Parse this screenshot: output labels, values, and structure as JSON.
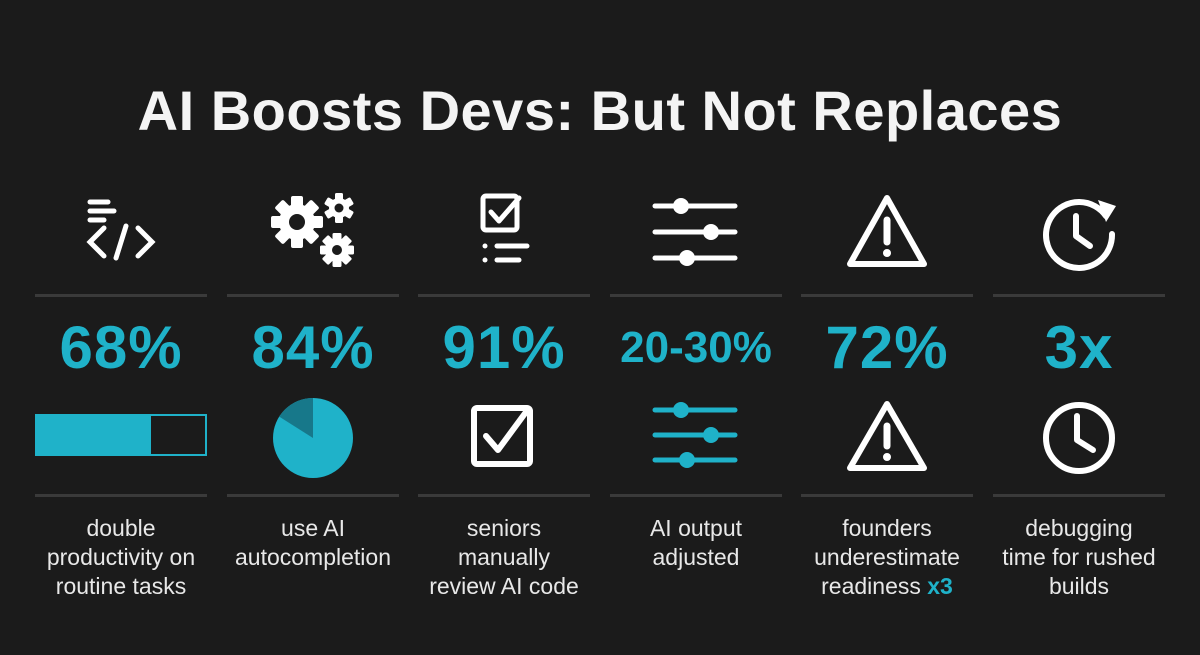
{
  "title": "AI Boosts Devs: But Not Replaces",
  "colors": {
    "accent": "#1fb2c9",
    "background": "#1b1b1b",
    "text": "#ffffff",
    "rule": "#3a3a3a"
  },
  "columns": [
    {
      "top_icon": "code-icon",
      "stat": "68%",
      "visual": "progress-bar",
      "visual_fill_fraction": 0.68,
      "desc_lines": [
        "double",
        "productivity on",
        "routine tasks"
      ]
    },
    {
      "top_icon": "gears-icon",
      "stat": "84%",
      "visual": "pie-chart",
      "visual_fill_fraction": 0.84,
      "desc_lines": [
        "use AI",
        "autocompletion"
      ]
    },
    {
      "top_icon": "checklist-icon",
      "stat": "91%",
      "visual": "checkbox-icon",
      "desc_lines": [
        "seniors",
        "manually",
        "review AI code"
      ]
    },
    {
      "top_icon": "sliders-icon",
      "stat": "20-30%",
      "visual": "sliders-icon",
      "desc_lines": [
        "AI output",
        "adjusted"
      ]
    },
    {
      "top_icon": "warning-icon",
      "stat": "72%",
      "visual": "warning-icon",
      "desc_lines": [
        "founders",
        "underestimate",
        "readiness"
      ],
      "desc_accent": "x3"
    },
    {
      "top_icon": "clock-refresh-icon",
      "stat": "3x",
      "visual": "clock-icon",
      "desc_lines": [
        "debugging",
        "time for rushed",
        "builds"
      ]
    }
  ]
}
